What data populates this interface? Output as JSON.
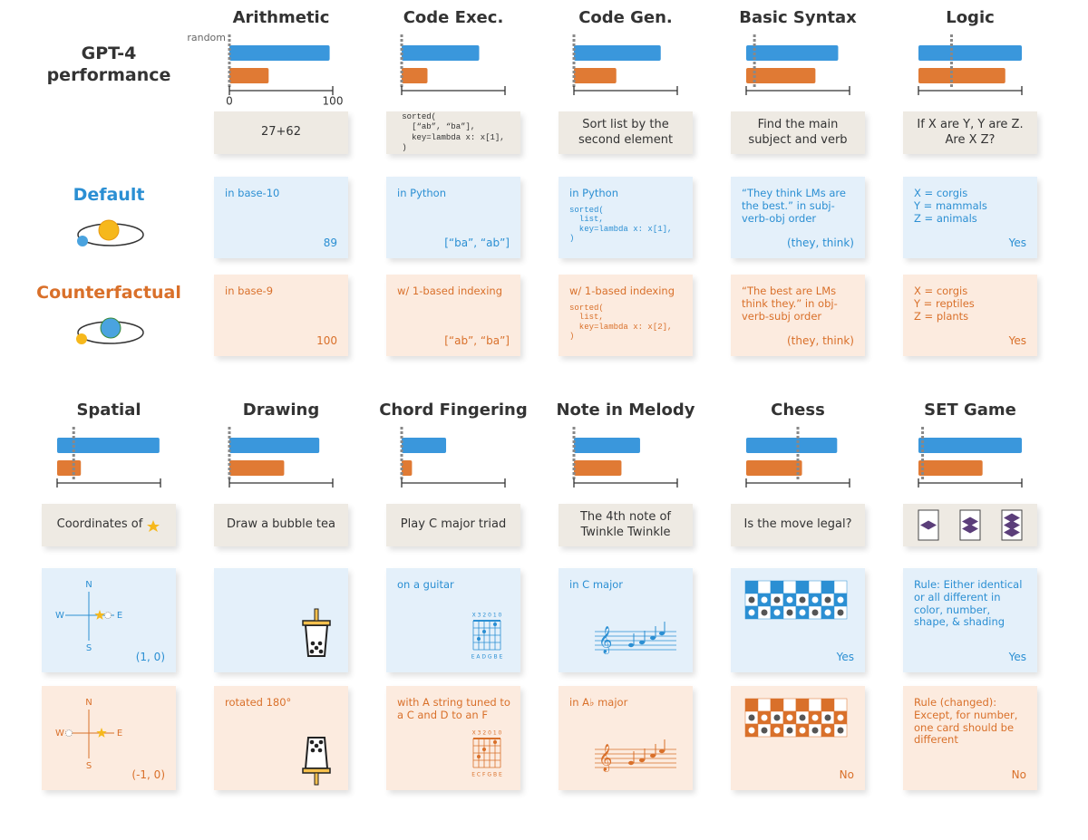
{
  "row_labels": {
    "performance": "GPT-4 performance",
    "default": "Default",
    "counterfactual": "Counterfactual"
  },
  "chart_data": [
    {
      "type": "bar",
      "title": "Arithmetic",
      "values": [
        97,
        38
      ],
      "colors": [
        "#3a97dc",
        "#e07a34"
      ],
      "random": 0,
      "random_label": "random",
      "xlim": [
        0,
        100
      ],
      "xticks": [
        0,
        100
      ]
    },
    {
      "type": "bar",
      "title": "Code Exec.",
      "values": [
        75,
        25
      ],
      "colors": [
        "#3a97dc",
        "#e07a34"
      ],
      "random": 0,
      "xlim": [
        0,
        100
      ]
    },
    {
      "type": "bar",
      "title": "Code Gen.",
      "values": [
        84,
        41
      ],
      "colors": [
        "#3a97dc",
        "#e07a34"
      ],
      "random": 0,
      "xlim": [
        0,
        100
      ]
    },
    {
      "type": "bar",
      "title": "Basic Syntax",
      "values": [
        89,
        67
      ],
      "colors": [
        "#3a97dc",
        "#e07a34"
      ],
      "random": 8,
      "xlim": [
        0,
        100
      ]
    },
    {
      "type": "bar",
      "title": "Logic",
      "values": [
        100,
        84
      ],
      "colors": [
        "#3a97dc",
        "#e07a34"
      ],
      "random": 32,
      "xlim": [
        0,
        100
      ]
    },
    {
      "type": "bar",
      "title": "Spatial",
      "values": [
        99,
        23
      ],
      "colors": [
        "#3a97dc",
        "#e07a34"
      ],
      "random": 16,
      "xlim": [
        0,
        100
      ]
    },
    {
      "type": "bar",
      "title": "Drawing",
      "values": [
        87,
        53
      ],
      "colors": [
        "#3a97dc",
        "#e07a34"
      ],
      "random": 0,
      "xlim": [
        0,
        100
      ]
    },
    {
      "type": "bar",
      "title": "Chord Fingering",
      "values": [
        43,
        10
      ],
      "colors": [
        "#3a97dc",
        "#e07a34"
      ],
      "random": 0,
      "xlim": [
        0,
        100
      ]
    },
    {
      "type": "bar",
      "title": "Note in Melody",
      "values": [
        64,
        46
      ],
      "colors": [
        "#3a97dc",
        "#e07a34"
      ],
      "random": 0,
      "xlim": [
        0,
        100
      ]
    },
    {
      "type": "bar",
      "title": "Chess",
      "values": [
        88,
        54
      ],
      "colors": [
        "#3a97dc",
        "#e07a34"
      ],
      "random": 50,
      "xlim": [
        0,
        100
      ]
    },
    {
      "type": "bar",
      "title": "SET Game",
      "values": [
        100,
        62
      ],
      "colors": [
        "#3a97dc",
        "#e07a34"
      ],
      "random": 4,
      "xlim": [
        0,
        100
      ]
    }
  ],
  "tasks": [
    {
      "prompt": "27+62",
      "default": {
        "setting": "in base-10",
        "answer": "89"
      },
      "counterfactual": {
        "setting": "in base-9",
        "answer": "100"
      }
    },
    {
      "prompt_code": "sorted(\n  [“ab”, “ba”],\n  key=lambda x: x[1],\n)",
      "default": {
        "setting": "in Python",
        "answer": "[“ba”, “ab”]"
      },
      "counterfactual": {
        "setting": "w/ 1-based indexing",
        "answer": "[“ab”, “ba”]"
      }
    },
    {
      "prompt": "Sort list by the second element",
      "default": {
        "setting": "in Python",
        "code": "sorted(\n  list,\n  key=lambda x: x[1],\n)"
      },
      "counterfactual": {
        "setting": "w/ 1-based indexing",
        "code": "sorted(\n  list,\n  key=lambda x: x[2],\n)"
      }
    },
    {
      "prompt": "Find the main subject and verb",
      "default": {
        "setting": "“They think LMs are the best.” in subj-verb-obj order",
        "answer": "(they, think)"
      },
      "counterfactual": {
        "setting": "“The best are LMs think they.” in obj-verb-subj order",
        "answer": "(they, think)"
      }
    },
    {
      "prompt": "If X are Y, Y are Z. Are X Z?",
      "default": {
        "setting": "X = corgis\nY = mammals\nZ = animals",
        "answer": "Yes"
      },
      "counterfactual": {
        "setting": "X = corgis\nY = reptiles\nZ = plants",
        "answer": "Yes"
      }
    },
    {
      "prompt": "Coordinates of",
      "default": {
        "compass": {
          "n": "N",
          "w": "W",
          "e": "E",
          "s": "S"
        },
        "answer": "(1, 0)"
      },
      "counterfactual": {
        "compass": {
          "n": "N",
          "w": "W",
          "e": "E",
          "s": "S"
        },
        "answer": "(-1, 0)"
      }
    },
    {
      "prompt": "Draw a bubble tea",
      "default": {},
      "counterfactual": {
        "setting": "rotated 180°"
      }
    },
    {
      "prompt": "Play C major triad",
      "default": {
        "setting": "on a guitar",
        "chord": {
          "top": "X 3 2 0 1 0",
          "bottom": "E A D G B E"
        }
      },
      "counterfactual": {
        "setting": "with A string tuned to a C and D to an F",
        "chord": {
          "top": "X 3 2 0 1 0",
          "bottom": "E C F G B E"
        }
      }
    },
    {
      "prompt": "The 4th note of Twinkle Twinkle",
      "default": {
        "setting": "in C major"
      },
      "counterfactual": {
        "setting": "in A♭ major"
      }
    },
    {
      "prompt": "Is the move legal?",
      "default": {
        "answer": "Yes"
      },
      "counterfactual": {
        "answer": "No"
      }
    },
    {
      "prompt_icons": true,
      "default": {
        "setting": "Rule: Either identical or all different in color, number, shape, & shading",
        "answer": "Yes"
      },
      "counterfactual": {
        "setting": "Rule (changed): Except, for number, one card should be different",
        "answer": "No"
      }
    }
  ]
}
